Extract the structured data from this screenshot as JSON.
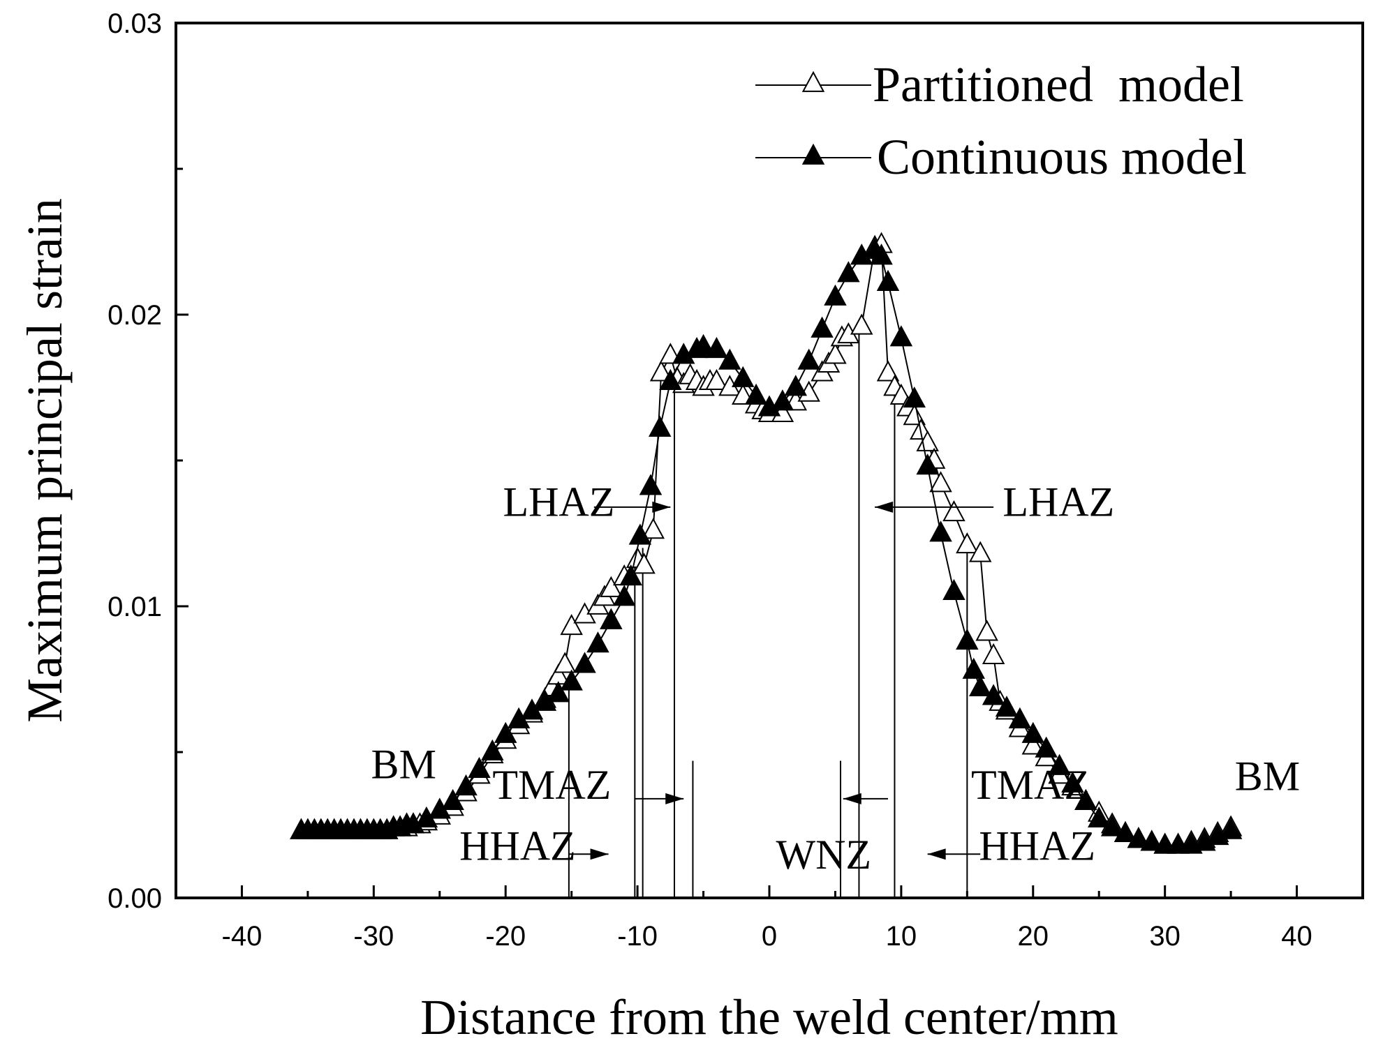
{
  "chart_data": {
    "type": "line",
    "title": "",
    "xlabel": "Distance from the weld center/mm",
    "ylabel": "Maximum principal strain",
    "xlim": [
      -45,
      45
    ],
    "ylim": [
      0,
      0.03
    ],
    "x_ticks": [
      -40,
      -30,
      -20,
      -10,
      0,
      10,
      20,
      30,
      40
    ],
    "x_tick_labels": [
      "-40",
      "-30",
      "-20",
      "-10",
      "0",
      "10",
      "20",
      "30",
      "40"
    ],
    "y_ticks": [
      0,
      0.01,
      0.02,
      0.03
    ],
    "y_tick_labels": [
      "0.00",
      "0.01",
      "0.02",
      "0.03"
    ],
    "legend_position": "top-right",
    "series": [
      {
        "name": "Partitioned  model",
        "marker": "open-triangle",
        "points": [
          [
            -35.5,
            0.0023
          ],
          [
            -35,
            0.0023
          ],
          [
            -34.5,
            0.0023
          ],
          [
            -34,
            0.0023
          ],
          [
            -33.5,
            0.0023
          ],
          [
            -33,
            0.0023
          ],
          [
            -32.5,
            0.0023
          ],
          [
            -32,
            0.0023
          ],
          [
            -31.5,
            0.0023
          ],
          [
            -31,
            0.0023
          ],
          [
            -30.5,
            0.0023
          ],
          [
            -30,
            0.0023
          ],
          [
            -29.5,
            0.0023
          ],
          [
            -29,
            0.0023
          ],
          [
            -28.5,
            0.0024
          ],
          [
            -28,
            0.0024
          ],
          [
            -27.5,
            0.0024
          ],
          [
            -27,
            0.0025
          ],
          [
            -26.5,
            0.0025
          ],
          [
            -26,
            0.0026
          ],
          [
            -25,
            0.0028
          ],
          [
            -24,
            0.0031
          ],
          [
            -23,
            0.0036
          ],
          [
            -22,
            0.0042
          ],
          [
            -21,
            0.0049
          ],
          [
            -20,
            0.0054
          ],
          [
            -19,
            0.0059
          ],
          [
            -18,
            0.0063
          ],
          [
            -17,
            0.0068
          ],
          [
            -16.5,
            0.0072
          ],
          [
            -16,
            0.0076
          ],
          [
            -15.5,
            0.008
          ],
          [
            -15,
            0.0093
          ],
          [
            -14,
            0.0097
          ],
          [
            -13,
            0.01
          ],
          [
            -12.5,
            0.0103
          ],
          [
            -12,
            0.0106
          ],
          [
            -11,
            0.011
          ],
          [
            -10,
            0.0116
          ],
          [
            -9.5,
            0.0114
          ],
          [
            -8.8,
            0.0126
          ],
          [
            -8.2,
            0.018
          ],
          [
            -7.5,
            0.0186
          ],
          [
            -7,
            0.0178
          ],
          [
            -6.5,
            0.0176
          ],
          [
            -6,
            0.0179
          ],
          [
            -5.5,
            0.0177
          ],
          [
            -5,
            0.0175
          ],
          [
            -4.5,
            0.0177
          ],
          [
            -4,
            0.0177
          ],
          [
            -3,
            0.0175
          ],
          [
            -2,
            0.0172
          ],
          [
            -1,
            0.0169
          ],
          [
            -0.5,
            0.0167
          ],
          [
            0,
            0.0166
          ],
          [
            1,
            0.0166
          ],
          [
            2,
            0.017
          ],
          [
            3,
            0.0173
          ],
          [
            4,
            0.018
          ],
          [
            4.5,
            0.0183
          ],
          [
            5,
            0.0186
          ],
          [
            5.5,
            0.0192
          ],
          [
            6,
            0.0193
          ],
          [
            7,
            0.0196
          ],
          [
            8,
            0.0223
          ],
          [
            8.5,
            0.0224
          ],
          [
            9,
            0.018
          ],
          [
            9.5,
            0.0175
          ],
          [
            10,
            0.0172
          ],
          [
            10.5,
            0.0168
          ],
          [
            11,
            0.0165
          ],
          [
            11.5,
            0.016
          ],
          [
            12,
            0.0156
          ],
          [
            12.5,
            0.015
          ],
          [
            13,
            0.0142
          ],
          [
            14,
            0.0132
          ],
          [
            15,
            0.0121
          ],
          [
            16,
            0.0118
          ],
          [
            16.5,
            0.0091
          ],
          [
            17,
            0.0083
          ],
          [
            17.5,
            0.0067
          ],
          [
            18,
            0.0064
          ],
          [
            19,
            0.0058
          ],
          [
            20,
            0.0052
          ],
          [
            21,
            0.0048
          ],
          [
            22,
            0.0042
          ],
          [
            23,
            0.0038
          ],
          [
            24,
            0.0033
          ],
          [
            25,
            0.0029
          ],
          [
            26,
            0.0025
          ],
          [
            27,
            0.0022
          ],
          [
            28,
            0.002
          ],
          [
            29,
            0.0019
          ],
          [
            30,
            0.0018
          ],
          [
            31,
            0.0018
          ],
          [
            32,
            0.0019
          ],
          [
            33,
            0.002
          ],
          [
            34,
            0.0022
          ],
          [
            35,
            0.0024
          ]
        ]
      },
      {
        "name": "Continuous model",
        "marker": "filled-triangle",
        "points": [
          [
            -35.5,
            0.0023
          ],
          [
            -35,
            0.0023
          ],
          [
            -34.5,
            0.0023
          ],
          [
            -34,
            0.0023
          ],
          [
            -33.5,
            0.0023
          ],
          [
            -33,
            0.0023
          ],
          [
            -32.5,
            0.0023
          ],
          [
            -32,
            0.0023
          ],
          [
            -31.5,
            0.0023
          ],
          [
            -31,
            0.0023
          ],
          [
            -30.5,
            0.0023
          ],
          [
            -30,
            0.0023
          ],
          [
            -29.5,
            0.0023
          ],
          [
            -29,
            0.0023
          ],
          [
            -28.5,
            0.0024
          ],
          [
            -28,
            0.0024
          ],
          [
            -27.5,
            0.0025
          ],
          [
            -27,
            0.0025
          ],
          [
            -26,
            0.0027
          ],
          [
            -25,
            0.003
          ],
          [
            -24,
            0.0033
          ],
          [
            -23,
            0.0038
          ],
          [
            -22,
            0.0044
          ],
          [
            -21,
            0.005
          ],
          [
            -20,
            0.0056
          ],
          [
            -19,
            0.0061
          ],
          [
            -18,
            0.0064
          ],
          [
            -17,
            0.0067
          ],
          [
            -16,
            0.007
          ],
          [
            -15,
            0.0074
          ],
          [
            -14,
            0.008
          ],
          [
            -13,
            0.0087
          ],
          [
            -12,
            0.0095
          ],
          [
            -11,
            0.0103
          ],
          [
            -10.5,
            0.011
          ],
          [
            -9.8,
            0.0124
          ],
          [
            -9,
            0.0141
          ],
          [
            -8.3,
            0.0161
          ],
          [
            -7.5,
            0.0177
          ],
          [
            -6.5,
            0.0186
          ],
          [
            -5.5,
            0.0188
          ],
          [
            -5,
            0.0189
          ],
          [
            -4,
            0.0188
          ],
          [
            -3,
            0.0184
          ],
          [
            -2,
            0.0178
          ],
          [
            -1,
            0.0172
          ],
          [
            0,
            0.0168
          ],
          [
            1,
            0.017
          ],
          [
            2,
            0.0175
          ],
          [
            3,
            0.0184
          ],
          [
            4,
            0.0195
          ],
          [
            5,
            0.0206
          ],
          [
            6,
            0.0214
          ],
          [
            7,
            0.022
          ],
          [
            8,
            0.0222
          ],
          [
            8.5,
            0.022
          ],
          [
            9,
            0.0211
          ],
          [
            10,
            0.0192
          ],
          [
            11,
            0.0171
          ],
          [
            12,
            0.0148
          ],
          [
            13,
            0.0125
          ],
          [
            14,
            0.0105
          ],
          [
            15,
            0.0088
          ],
          [
            15.5,
            0.0078
          ],
          [
            16,
            0.0072
          ],
          [
            17,
            0.0069
          ],
          [
            18,
            0.0065
          ],
          [
            19,
            0.0061
          ],
          [
            20,
            0.0056
          ],
          [
            21,
            0.0051
          ],
          [
            22,
            0.0045
          ],
          [
            23,
            0.0039
          ],
          [
            24,
            0.0033
          ],
          [
            25,
            0.0027
          ],
          [
            26,
            0.0024
          ],
          [
            27,
            0.0022
          ],
          [
            28,
            0.002
          ],
          [
            29,
            0.0019
          ],
          [
            30,
            0.0018
          ],
          [
            31,
            0.0018
          ],
          [
            32,
            0.0018
          ],
          [
            33,
            0.0019
          ],
          [
            34,
            0.0021
          ],
          [
            35,
            0.0023
          ]
        ]
      }
    ],
    "boundary_lines": [
      {
        "x": -15.2,
        "y_top": 0.0073
      },
      {
        "x": -10.2,
        "y_top": 0.0116
      },
      {
        "x": -9.6,
        "y_top": 0.012
      },
      {
        "x": -7.2,
        "y_top": 0.0175
      },
      {
        "x": -5.8,
        "y_top": 0.0047
      },
      {
        "x": 5.4,
        "y_top": 0.0047
      },
      {
        "x": 6.8,
        "y_top": 0.0195
      },
      {
        "x": 9.5,
        "y_top": 0.0176
      },
      {
        "x": 15.0,
        "y_top": 0.012
      }
    ],
    "annotations": [
      {
        "text": "LHAZ",
        "x": -20.2,
        "y": 0.0131,
        "arrow_from": [
          -13.3,
          0.0134
        ],
        "arrow_to": [
          -7.5,
          0.0134
        ]
      },
      {
        "text": "LHAZ",
        "x": 17.7,
        "y": 0.0131,
        "arrow_from": [
          17.0,
          0.0134
        ],
        "arrow_to": [
          8.0,
          0.0134
        ]
      },
      {
        "text": "TMAZ",
        "x": -21.0,
        "y": 0.0034,
        "arrow_from": [
          -10.2,
          0.0034
        ],
        "arrow_to": [
          -6.5,
          0.0034
        ]
      },
      {
        "text": "TMAZ",
        "x": 15.3,
        "y": 0.0034,
        "arrow_from": [
          9.0,
          0.0034
        ],
        "arrow_to": [
          5.6,
          0.0034
        ]
      },
      {
        "text": "HHAZ",
        "x": -23.5,
        "y": 0.0013,
        "arrow_from": [
          -15.2,
          0.0015
        ],
        "arrow_to": [
          -12.2,
          0.0015
        ]
      },
      {
        "text": "HHAZ",
        "x": 15.9,
        "y": 0.0013,
        "arrow_from": [
          16.0,
          0.0015
        ],
        "arrow_to": [
          12.0,
          0.0015
        ]
      },
      {
        "text": "WNZ",
        "x": 0.5,
        "y": 0.001
      },
      {
        "text": "BM",
        "x": -30.2,
        "y": 0.0041
      },
      {
        "text": "BM",
        "x": 35.3,
        "y": 0.0037
      }
    ]
  }
}
